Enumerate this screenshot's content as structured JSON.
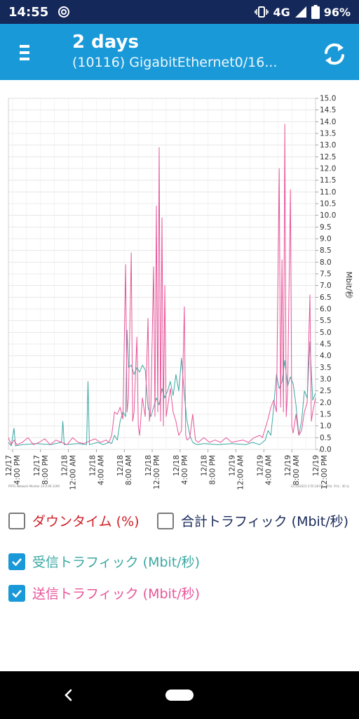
{
  "status_bar": {
    "time": "14:55",
    "network": "4G",
    "battery": "96%",
    "icons": [
      "sync-icon",
      "vibrate-icon",
      "signal-icon",
      "battery-icon"
    ]
  },
  "header": {
    "title": "2 days",
    "subtitle": "(10116) GigabitEthernet0/16...",
    "icons": [
      "menu-icon",
      "refresh-icon"
    ]
  },
  "chart_data": {
    "type": "line",
    "y_axis": {
      "label": "Mbit/秒",
      "ylim": [
        0,
        15
      ],
      "ticks": [
        "0.0",
        "0.5",
        "1.0",
        "1.5",
        "2.0",
        "2.5",
        "3.0",
        "3.5",
        "4.0",
        "4.5",
        "5.0",
        "5.5",
        "6.0",
        "6.5",
        "7.0",
        "7.5",
        "8.0",
        "8.5",
        "9.0",
        "9.5",
        "10.0",
        "10.5",
        "11.0",
        "11.5",
        "12.0",
        "12.5",
        "13.0",
        "13.5",
        "14.0",
        "14.5",
        "15.0"
      ],
      "position": "right"
    },
    "x_axis": {
      "ticks": [
        {
          "date": "12/17",
          "time": "4:00 PM"
        },
        {
          "date": "12/17",
          "time": "8:00 PM"
        },
        {
          "date": "12/18",
          "time": "12:00 AM"
        },
        {
          "date": "12/18",
          "time": "4:00 AM"
        },
        {
          "date": "12/18",
          "time": "8:00 AM"
        },
        {
          "date": "12/18",
          "time": "12:00 PM"
        },
        {
          "date": "12/18",
          "time": "4:00 PM"
        },
        {
          "date": "12/18",
          "time": "8:00 PM"
        },
        {
          "date": "12/19",
          "time": "12:00 AM"
        },
        {
          "date": "12/19",
          "time": "4:00 AM"
        },
        {
          "date": "12/19",
          "time": "8:00 AM"
        },
        {
          "date": "12/19",
          "time": "12:00 PM"
        }
      ]
    },
    "footer_left": "PRTG Network Monitor 23.4.90.1299",
    "footer_right": "12/19/2023 2:55:18 PM - 平均: 平均 : 30 分",
    "grid": true,
    "series": [
      {
        "name": "受信トラフィック (Mbit/秒)",
        "color": "#3aa8a2",
        "points": [
          [
            0,
            0.3
          ],
          [
            2,
            0.15
          ],
          [
            4,
            0.9
          ],
          [
            5,
            0.15
          ],
          [
            10,
            0.2
          ],
          [
            20,
            0.25
          ],
          [
            30,
            0.2
          ],
          [
            38,
            0.3
          ],
          [
            39,
            1.2
          ],
          [
            40,
            0.2
          ],
          [
            50,
            0.25
          ],
          [
            56,
            0.2
          ],
          [
            57,
            2.9
          ],
          [
            58,
            0.2
          ],
          [
            64,
            0.3
          ],
          [
            68,
            0.2
          ],
          [
            72,
            0.3
          ],
          [
            74,
            0.25
          ],
          [
            76,
            0.6
          ],
          [
            78,
            0.4
          ],
          [
            80,
            1.2
          ],
          [
            82,
            1.6
          ],
          [
            84,
            1.4
          ],
          [
            85,
            5.1
          ],
          [
            86,
            3.5
          ],
          [
            88,
            3.6
          ],
          [
            90,
            3.2
          ],
          [
            92,
            3.5
          ],
          [
            94,
            3.3
          ],
          [
            96,
            3.6
          ],
          [
            98,
            3.4
          ],
          [
            100,
            1.8
          ],
          [
            102,
            1.4
          ],
          [
            104,
            1.8
          ],
          [
            106,
            2.2
          ],
          [
            108,
            1.9
          ],
          [
            110,
            2.6
          ],
          [
            112,
            2.2
          ],
          [
            114,
            2.5
          ],
          [
            116,
            2.9
          ],
          [
            118,
            2.3
          ],
          [
            120,
            3.2
          ],
          [
            122,
            2.5
          ],
          [
            124,
            3.9
          ],
          [
            126,
            2.3
          ],
          [
            128,
            1.2
          ],
          [
            130,
            0.6
          ],
          [
            132,
            0.3
          ],
          [
            135,
            0.2
          ],
          [
            140,
            0.25
          ],
          [
            150,
            0.2
          ],
          [
            160,
            0.25
          ],
          [
            170,
            0.2
          ],
          [
            175,
            0.3
          ],
          [
            180,
            0.2
          ],
          [
            184,
            0.4
          ],
          [
            186,
            0.8
          ],
          [
            188,
            0.6
          ],
          [
            190,
            1.8
          ],
          [
            192,
            3.2
          ],
          [
            194,
            2.6
          ],
          [
            196,
            2.9
          ],
          [
            198,
            3.8
          ],
          [
            200,
            2.7
          ],
          [
            202,
            3.1
          ],
          [
            204,
            2.8
          ],
          [
            206,
            1.9
          ],
          [
            208,
            0.6
          ],
          [
            210,
            1.2
          ],
          [
            212,
            2.5
          ],
          [
            214,
            2.2
          ],
          [
            216,
            4.6
          ],
          [
            218,
            2.1
          ],
          [
            220,
            2.4
          ]
        ]
      },
      {
        "name": "送信トラフィック (Mbit/秒)",
        "color": "#e8559a",
        "points": [
          [
            0,
            0.5
          ],
          [
            2,
            0.2
          ],
          [
            4,
            0.4
          ],
          [
            6,
            0.2
          ],
          [
            10,
            0.3
          ],
          [
            14,
            0.5
          ],
          [
            18,
            0.2
          ],
          [
            22,
            0.3
          ],
          [
            26,
            0.45
          ],
          [
            30,
            0.2
          ],
          [
            34,
            0.4
          ],
          [
            38,
            0.3
          ],
          [
            42,
            0.2
          ],
          [
            46,
            0.5
          ],
          [
            50,
            0.3
          ],
          [
            54,
            0.25
          ],
          [
            58,
            0.35
          ],
          [
            62,
            0.45
          ],
          [
            66,
            0.3
          ],
          [
            70,
            0.4
          ],
          [
            72,
            0.3
          ],
          [
            74,
            0.6
          ],
          [
            76,
            1.6
          ],
          [
            78,
            1.5
          ],
          [
            80,
            1.8
          ],
          [
            82,
            1.3
          ],
          [
            84,
            7.9
          ],
          [
            85,
            1.6
          ],
          [
            86,
            2.2
          ],
          [
            88,
            8.4
          ],
          [
            89,
            1.2
          ],
          [
            90,
            1.6
          ],
          [
            92,
            4.8
          ],
          [
            93,
            1.0
          ],
          [
            94,
            0.6
          ],
          [
            96,
            2.2
          ],
          [
            98,
            1.4
          ],
          [
            100,
            5.6
          ],
          [
            101,
            1.2
          ],
          [
            102,
            1.8
          ],
          [
            104,
            7.8
          ],
          [
            105,
            1.4
          ],
          [
            106,
            10.4
          ],
          [
            107,
            1.6
          ],
          [
            108,
            12.9
          ],
          [
            109,
            1.2
          ],
          [
            110,
            9.9
          ],
          [
            111,
            1.0
          ],
          [
            112,
            7.0
          ],
          [
            113,
            1.4
          ],
          [
            114,
            1.8
          ],
          [
            116,
            2.6
          ],
          [
            118,
            1.6
          ],
          [
            120,
            1.2
          ],
          [
            122,
            0.6
          ],
          [
            124,
            0.8
          ],
          [
            126,
            6.1
          ],
          [
            127,
            0.6
          ],
          [
            128,
            0.4
          ],
          [
            130,
            0.5
          ],
          [
            132,
            1.5
          ],
          [
            134,
            0.4
          ],
          [
            136,
            0.3
          ],
          [
            140,
            0.5
          ],
          [
            144,
            0.3
          ],
          [
            148,
            0.4
          ],
          [
            152,
            0.3
          ],
          [
            156,
            0.5
          ],
          [
            160,
            0.3
          ],
          [
            164,
            0.35
          ],
          [
            168,
            0.4
          ],
          [
            172,
            0.3
          ],
          [
            176,
            0.5
          ],
          [
            180,
            0.6
          ],
          [
            182,
            0.5
          ],
          [
            184,
            0.9
          ],
          [
            186,
            1.3
          ],
          [
            188,
            1.8
          ],
          [
            190,
            2.1
          ],
          [
            192,
            1.6
          ],
          [
            194,
            12.0
          ],
          [
            195,
            1.8
          ],
          [
            196,
            8.1
          ],
          [
            197,
            1.6
          ],
          [
            198,
            13.9
          ],
          [
            199,
            1.4
          ],
          [
            200,
            2.5
          ],
          [
            202,
            11.1
          ],
          [
            203,
            1.0
          ],
          [
            204,
            0.7
          ],
          [
            206,
            1.5
          ],
          [
            208,
            0.6
          ],
          [
            210,
            0.8
          ],
          [
            212,
            1.6
          ],
          [
            214,
            2.0
          ],
          [
            216,
            6.6
          ],
          [
            217,
            1.2
          ],
          [
            218,
            1.6
          ],
          [
            220,
            2.2
          ]
        ]
      }
    ]
  },
  "legend": [
    {
      "label": "ダウンタイム (%)",
      "checked": false,
      "color": "#d02028"
    },
    {
      "label": "合計トラフィック (Mbit/秒)",
      "checked": false,
      "color": "#1a2a5a"
    },
    {
      "label": "受信トラフィック (Mbit/秒)",
      "checked": true,
      "color": "#3aa8a2"
    },
    {
      "label": "送信トラフィック (Mbit/秒)",
      "checked": true,
      "color": "#e8559a"
    }
  ]
}
